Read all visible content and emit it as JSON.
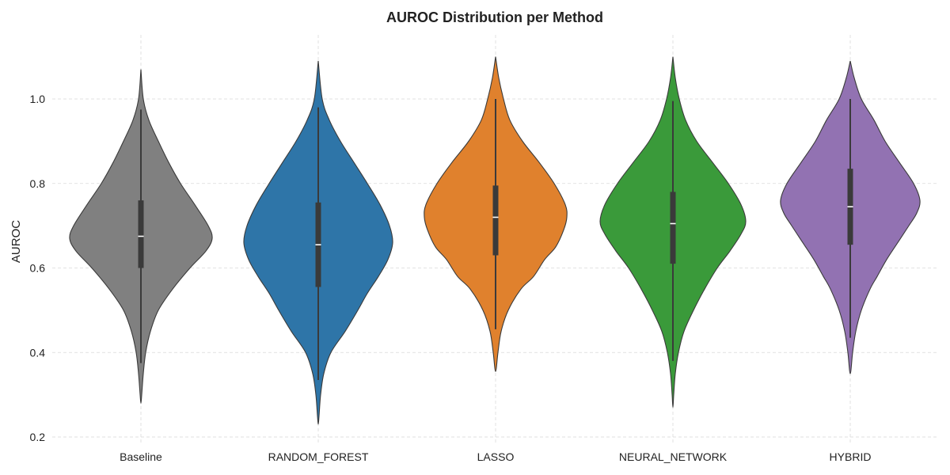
{
  "chart_data": {
    "type": "violin",
    "title": "AUROC Distribution per Method",
    "xlabel": "",
    "ylabel": "AUROC",
    "ylim": [
      0.2,
      1.15
    ],
    "yticks": [
      0.2,
      0.4,
      0.6,
      0.8,
      1.0
    ],
    "ytick_labels": [
      "0.2",
      "0.4",
      "0.6",
      "0.8",
      "1.0"
    ],
    "grid": true,
    "legend": "none",
    "categories": [
      "Baseline",
      "RANDOM_FOREST",
      "LASSO",
      "NEURAL_NETWORK",
      "HYBRID"
    ],
    "series": [
      {
        "category": "Baseline",
        "color": "#808080",
        "median": 0.675,
        "q1": 0.6,
        "q3": 0.76,
        "whisker_low": 0.375,
        "whisker_high": 0.975,
        "profile": [
          [
            1.07,
            0.0
          ],
          [
            1.0,
            0.03
          ],
          [
            0.95,
            0.1
          ],
          [
            0.9,
            0.22
          ],
          [
            0.85,
            0.35
          ],
          [
            0.8,
            0.5
          ],
          [
            0.75,
            0.68
          ],
          [
            0.7,
            0.85
          ],
          [
            0.67,
            0.9
          ],
          [
            0.64,
            0.82
          ],
          [
            0.6,
            0.62
          ],
          [
            0.55,
            0.4
          ],
          [
            0.5,
            0.22
          ],
          [
            0.45,
            0.12
          ],
          [
            0.4,
            0.06
          ],
          [
            0.35,
            0.03
          ],
          [
            0.3,
            0.01
          ],
          [
            0.28,
            0.0
          ]
        ]
      },
      {
        "category": "RANDOM_FOREST",
        "color": "#2e75a8",
        "median": 0.655,
        "q1": 0.555,
        "q3": 0.755,
        "whisker_low": 0.335,
        "whisker_high": 0.98,
        "profile": [
          [
            1.09,
            0.0
          ],
          [
            1.0,
            0.05
          ],
          [
            0.95,
            0.14
          ],
          [
            0.9,
            0.28
          ],
          [
            0.85,
            0.45
          ],
          [
            0.8,
            0.62
          ],
          [
            0.75,
            0.78
          ],
          [
            0.7,
            0.9
          ],
          [
            0.66,
            0.94
          ],
          [
            0.62,
            0.88
          ],
          [
            0.58,
            0.76
          ],
          [
            0.54,
            0.62
          ],
          [
            0.5,
            0.5
          ],
          [
            0.45,
            0.34
          ],
          [
            0.4,
            0.16
          ],
          [
            0.35,
            0.07
          ],
          [
            0.3,
            0.03
          ],
          [
            0.25,
            0.01
          ],
          [
            0.23,
            0.0
          ]
        ]
      },
      {
        "category": "LASSO",
        "color": "#e0812d",
        "median": 0.72,
        "q1": 0.63,
        "q3": 0.795,
        "whisker_low": 0.455,
        "whisker_high": 1.0,
        "profile": [
          [
            1.1,
            0.0
          ],
          [
            1.05,
            0.04
          ],
          [
            1.0,
            0.1
          ],
          [
            0.95,
            0.18
          ],
          [
            0.9,
            0.34
          ],
          [
            0.85,
            0.55
          ],
          [
            0.8,
            0.74
          ],
          [
            0.75,
            0.88
          ],
          [
            0.72,
            0.9
          ],
          [
            0.69,
            0.86
          ],
          [
            0.65,
            0.76
          ],
          [
            0.62,
            0.62
          ],
          [
            0.58,
            0.48
          ],
          [
            0.55,
            0.32
          ],
          [
            0.5,
            0.16
          ],
          [
            0.45,
            0.07
          ],
          [
            0.4,
            0.03
          ],
          [
            0.355,
            0.0
          ]
        ]
      },
      {
        "category": "NEURAL_NETWORK",
        "color": "#3a9a3a",
        "median": 0.705,
        "q1": 0.61,
        "q3": 0.78,
        "whisker_low": 0.38,
        "whisker_high": 0.995,
        "profile": [
          [
            1.1,
            0.0
          ],
          [
            1.05,
            0.03
          ],
          [
            1.0,
            0.08
          ],
          [
            0.95,
            0.16
          ],
          [
            0.9,
            0.3
          ],
          [
            0.85,
            0.5
          ],
          [
            0.8,
            0.7
          ],
          [
            0.75,
            0.86
          ],
          [
            0.71,
            0.92
          ],
          [
            0.68,
            0.86
          ],
          [
            0.64,
            0.72
          ],
          [
            0.6,
            0.56
          ],
          [
            0.55,
            0.4
          ],
          [
            0.5,
            0.26
          ],
          [
            0.45,
            0.14
          ],
          [
            0.4,
            0.07
          ],
          [
            0.35,
            0.03
          ],
          [
            0.3,
            0.01
          ],
          [
            0.27,
            0.0
          ]
        ]
      },
      {
        "category": "HYBRID",
        "color": "#9272b2",
        "median": 0.745,
        "q1": 0.655,
        "q3": 0.835,
        "whisker_low": 0.435,
        "whisker_high": 1.0,
        "profile": [
          [
            1.09,
            0.0
          ],
          [
            1.05,
            0.05
          ],
          [
            1.0,
            0.14
          ],
          [
            0.95,
            0.3
          ],
          [
            0.9,
            0.44
          ],
          [
            0.85,
            0.62
          ],
          [
            0.8,
            0.8
          ],
          [
            0.76,
            0.88
          ],
          [
            0.73,
            0.84
          ],
          [
            0.7,
            0.74
          ],
          [
            0.66,
            0.6
          ],
          [
            0.62,
            0.46
          ],
          [
            0.58,
            0.34
          ],
          [
            0.55,
            0.25
          ],
          [
            0.5,
            0.14
          ],
          [
            0.45,
            0.07
          ],
          [
            0.4,
            0.03
          ],
          [
            0.35,
            0.0
          ]
        ]
      }
    ]
  }
}
